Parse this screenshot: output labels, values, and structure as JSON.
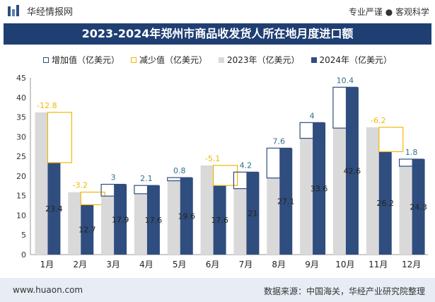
{
  "header": {
    "brand_name": "华经情报网",
    "tagline": "专业严谨 ● 客观科学"
  },
  "title": "2023-2024年郑州市商品收发货人所在地月度进口额",
  "legend": {
    "increase": "增加值（亿美元）",
    "decrease": "减少值（亿美元）",
    "y2023": "2023年（亿美元）",
    "y2024": "2024年（亿美元）"
  },
  "colors": {
    "bar_2023": "#d9d9d9",
    "bar_2024": "#2f4d7e",
    "increase": "#2f4d7e",
    "decrease": "#f2b705",
    "increase_label": "#2f6f8f",
    "decrease_label": "#f2b705"
  },
  "chart_data": {
    "type": "bar",
    "categories": [
      "1月",
      "2月",
      "3月",
      "4月",
      "5月",
      "6月",
      "7月",
      "8月",
      "9月",
      "10月",
      "11月",
      "12月"
    ],
    "series": [
      {
        "name": "2023年（亿美元）",
        "values": [
          36.2,
          15.9,
          14.9,
          15.5,
          18.8,
          22.7,
          16.8,
          19.5,
          29.6,
          32.2,
          32.4,
          22.5
        ]
      },
      {
        "name": "2024年（亿美元）",
        "values": [
          23.4,
          12.7,
          17.9,
          17.6,
          19.6,
          17.6,
          21,
          27.1,
          33.6,
          42.6,
          26.2,
          24.3
        ]
      }
    ],
    "change_values": [
      -12.8,
      -3.2,
      3,
      2.1,
      0.8,
      -5.1,
      4.2,
      7.6,
      4,
      10.4,
      -6.2,
      1.8
    ],
    "change_labels": [
      "-12.8",
      "-3.2",
      "3",
      "2.1",
      "0.8",
      "-5.1",
      "4.2",
      "7.6",
      "4",
      "10.4",
      "-6.2",
      "1.8"
    ],
    "value_labels_2024": [
      "23.4",
      "12.7",
      "17.9",
      "17.6",
      "19.6",
      "17.6",
      "21",
      "27.1",
      "33.6",
      "42.6",
      "26.2",
      "24.3"
    ],
    "yticks": [
      0,
      5,
      10,
      15,
      20,
      25,
      30,
      35,
      40,
      45
    ],
    "ylim": [
      0,
      45
    ]
  },
  "footer": {
    "url": "www.huaon.com",
    "source": "数据来源：中国海关，华经产业研究院整理"
  }
}
